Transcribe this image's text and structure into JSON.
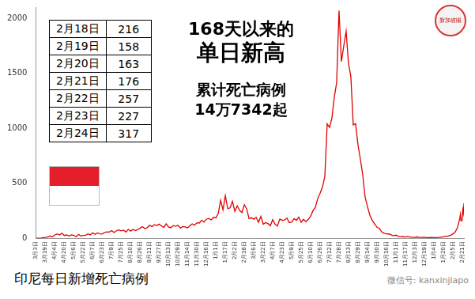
{
  "chart_data": {
    "type": "line",
    "title": "印尼每日新增死亡病例",
    "annotations": [
      "168天以来的",
      "单日新高",
      "累计死亡病例",
      "14万7342起"
    ],
    "x": [
      0,
      4,
      8,
      12,
      16,
      20,
      24,
      28,
      32,
      36,
      40,
      44,
      48,
      52,
      56,
      60,
      64,
      68,
      72,
      76,
      80,
      84,
      88,
      92,
      96,
      100,
      104,
      108,
      112,
      116,
      120,
      124,
      128,
      132,
      136,
      140,
      144,
      148,
      152,
      156,
      160,
      164,
      168,
      172,
      176,
      180,
      184,
      188,
      192,
      196,
      200,
      204,
      208,
      212,
      216,
      220,
      224,
      228,
      232,
      236,
      240,
      244,
      248,
      252,
      256,
      260,
      264,
      268,
      272,
      276,
      280,
      284,
      288,
      292,
      296,
      300,
      304,
      308,
      312,
      316,
      320,
      324,
      328,
      332,
      336,
      340,
      344,
      348,
      352,
      356,
      360,
      364,
      368,
      372,
      376,
      380,
      384,
      388,
      392,
      396,
      400,
      404,
      408,
      412,
      416,
      420,
      424,
      428,
      432,
      436,
      440,
      444,
      448,
      452,
      456,
      460,
      464,
      468,
      472,
      476,
      480,
      484,
      488,
      492,
      496,
      500,
      504,
      508,
      512,
      516,
      520,
      524,
      528,
      532,
      536,
      540,
      544,
      548,
      552,
      556,
      560,
      564,
      568,
      572,
      576,
      580,
      584,
      588,
      592,
      596,
      600,
      604,
      608,
      612,
      616,
      620,
      624,
      628,
      632,
      636,
      640,
      644,
      648,
      652,
      656,
      660,
      664,
      668,
      672,
      676,
      680,
      684,
      688,
      692,
      696,
      700,
      704,
      708,
      712,
      716,
      717,
      718,
      719,
      720,
      721,
      722,
      723
    ],
    "values": [
      0,
      0,
      1,
      5,
      7,
      12,
      20,
      14,
      30,
      40,
      30,
      46,
      25,
      30,
      20,
      30,
      25,
      14,
      35,
      20,
      25,
      28,
      40,
      31,
      50,
      35,
      48,
      40,
      38,
      53,
      58,
      56,
      70,
      52,
      68,
      75,
      67,
      74,
      57,
      80,
      65,
      81,
      69,
      79,
      92,
      105,
      87,
      96,
      118,
      106,
      124,
      114,
      128,
      113,
      98,
      131,
      103,
      95,
      115,
      108,
      118,
      92,
      106,
      103,
      94,
      112,
      131,
      118,
      141,
      138,
      164,
      146,
      174,
      180,
      167,
      190,
      185,
      226,
      346,
      258,
      387,
      269,
      276,
      336,
      245,
      295,
      254,
      233,
      305,
      268,
      178,
      186,
      173,
      190,
      145,
      199,
      128,
      142,
      133,
      114,
      169,
      126,
      111,
      175,
      163,
      165,
      183,
      142,
      148,
      178,
      163,
      192,
      145,
      172,
      150,
      170,
      200,
      250,
      280,
      360,
      410,
      465,
      560,
      1040,
      1007,
      1093,
      1280,
      1415,
      2069,
      1604,
      1747,
      1881,
      1588,
      1468,
      1030,
      1041,
      850,
      720,
      580,
      375,
      290,
      210,
      164,
      132,
      100,
      91,
      58,
      45,
      40,
      39,
      31,
      22,
      28,
      18,
      15,
      14,
      11,
      17,
      10,
      9,
      8,
      12,
      8,
      7,
      9,
      6,
      5,
      8,
      6,
      5,
      7,
      10,
      13,
      17,
      20,
      25,
      38,
      55,
      95,
      180,
      216,
      158,
      163,
      176,
      257,
      227,
      317
    ],
    "color": "#e00000",
    "xlim": [
      0,
      723
    ],
    "xticks": [
      {
        "value": 0,
        "label": "3月3日"
      },
      {
        "value": 16,
        "label": "3月19日"
      },
      {
        "value": 32,
        "label": "4月4日"
      },
      {
        "value": 48,
        "label": "4月20日"
      },
      {
        "value": 64,
        "label": "5月6日"
      },
      {
        "value": 80,
        "label": "5月22日"
      },
      {
        "value": 96,
        "label": "6月7日"
      },
      {
        "value": 112,
        "label": "6月23日"
      },
      {
        "value": 128,
        "label": "7月9日"
      },
      {
        "value": 144,
        "label": "7月25日"
      },
      {
        "value": 160,
        "label": "8月10日"
      },
      {
        "value": 176,
        "label": "8月26日"
      },
      {
        "value": 192,
        "label": "9月11日"
      },
      {
        "value": 208,
        "label": "9月27日"
      },
      {
        "value": 224,
        "label": "10月13日"
      },
      {
        "value": 240,
        "label": "10月29日"
      },
      {
        "value": 256,
        "label": "11月14日"
      },
      {
        "value": 272,
        "label": "11月30日"
      },
      {
        "value": 288,
        "label": "12月16日"
      },
      {
        "value": 304,
        "label": "1月1日"
      },
      {
        "value": 320,
        "label": "1月17日"
      },
      {
        "value": 336,
        "label": "2月2日"
      },
      {
        "value": 352,
        "label": "2月18日"
      },
      {
        "value": 368,
        "label": "3月6日"
      },
      {
        "value": 384,
        "label": "3月22日"
      },
      {
        "value": 400,
        "label": "4月7日"
      },
      {
        "value": 416,
        "label": "4月23日"
      },
      {
        "value": 432,
        "label": "5月9日"
      },
      {
        "value": 448,
        "label": "5月25日"
      },
      {
        "value": 464,
        "label": "6月10日"
      },
      {
        "value": 480,
        "label": "6月26日"
      },
      {
        "value": 496,
        "label": "7月12日"
      },
      {
        "value": 512,
        "label": "7月28日"
      },
      {
        "value": 528,
        "label": "8月13日"
      },
      {
        "value": 544,
        "label": "8月29日"
      },
      {
        "value": 560,
        "label": "9月14日"
      },
      {
        "value": 576,
        "label": "9月30日"
      },
      {
        "value": 592,
        "label": "10月16日"
      },
      {
        "value": 608,
        "label": "11月1日"
      },
      {
        "value": 624,
        "label": "11月17日"
      },
      {
        "value": 640,
        "label": "12月3日"
      },
      {
        "value": 656,
        "label": "12月19日"
      },
      {
        "value": 672,
        "label": "1月4日"
      },
      {
        "value": 688,
        "label": "1月20日"
      },
      {
        "value": 704,
        "label": "2月5日"
      },
      {
        "value": 720,
        "label": "2月21日"
      }
    ],
    "ylim": [
      0,
      2100
    ],
    "yticks": [
      0,
      500,
      1000,
      1500,
      2000
    ],
    "grid": false
  },
  "table": {
    "rows": [
      [
        "2月18日",
        216
      ],
      [
        "2月19日",
        158
      ],
      [
        "2月20日",
        163
      ],
      [
        "2月21日",
        176
      ],
      [
        "2月22日",
        257
      ],
      [
        "2月23日",
        227
      ],
      [
        "2月24日",
        317
      ]
    ]
  },
  "logo": "新加坡眼",
  "watermark": "微信号: kanxinjiapo"
}
